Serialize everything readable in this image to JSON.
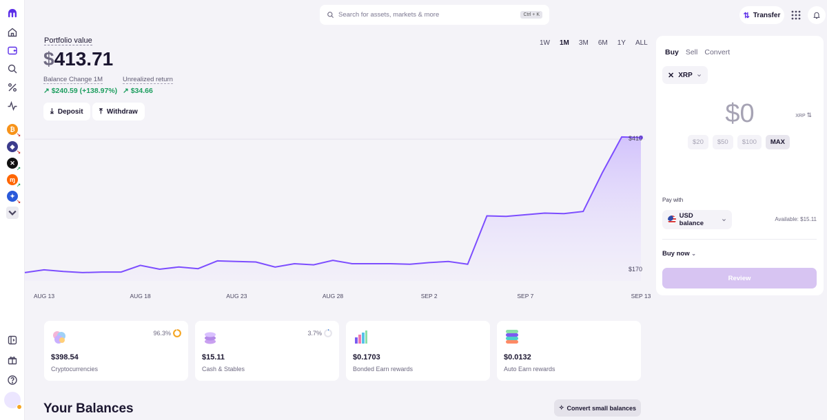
{
  "search": {
    "placeholder": "Search for assets, markets & more",
    "shortcut": "Ctrl + K"
  },
  "header": {
    "transfer_label": "Transfer"
  },
  "rail": {
    "icons": [
      "kraken-logo-icon",
      "home-icon",
      "wallet-icon",
      "search-icon",
      "percent-icon",
      "activity-icon",
      "sidebar-toggle-icon",
      "gift-icon",
      "help-icon"
    ],
    "coins": [
      {
        "symbol": "₿",
        "color": "#f7931a"
      },
      {
        "symbol": "◆",
        "color": "#3c3c8c"
      },
      {
        "symbol": "✕",
        "color": "#111111"
      },
      {
        "symbol": "ɱ",
        "color": "#ff6600"
      },
      {
        "symbol": "✦",
        "color": "#2a5ada"
      }
    ]
  },
  "portfolio": {
    "label": "Portfolio value",
    "currency": "$",
    "value": "413.71",
    "balance_change_label": "Balance Change 1M",
    "balance_change_value": "$240.59 (+138.97%)",
    "unrealized_label": "Unrealized return",
    "unrealized_value": "$34.66",
    "deposit_label": "Deposit",
    "withdraw_label": "Withdraw"
  },
  "ranges": {
    "items": [
      "1W",
      "1M",
      "3M",
      "6M",
      "1Y",
      "ALL"
    ],
    "active": "1M"
  },
  "chart_data": {
    "type": "area",
    "x": [
      "AUG 12",
      "AUG 13",
      "AUG 14",
      "AUG 15",
      "AUG 16",
      "AUG 17",
      "AUG 18",
      "AUG 19",
      "AUG 20",
      "AUG 21",
      "AUG 22",
      "AUG 23",
      "AUG 24",
      "AUG 25",
      "AUG 26",
      "AUG 27",
      "AUG 28",
      "AUG 29",
      "AUG 30",
      "AUG 31",
      "SEP 1",
      "SEP 2",
      "SEP 3",
      "SEP 4",
      "SEP 5",
      "SEP 6",
      "SEP 7",
      "SEP 8",
      "SEP 9",
      "SEP 10",
      "SEP 11",
      "SEP 12",
      "SEP 13"
    ],
    "values": [
      170,
      175,
      172,
      170,
      171,
      171,
      183,
      176,
      180,
      177,
      191,
      190,
      189,
      180,
      186,
      184,
      192,
      186,
      186,
      186,
      185,
      188,
      190,
      185,
      272,
      271,
      274,
      277,
      276,
      280,
      350,
      414,
      413
    ],
    "x_ticks": [
      "AUG 13",
      "AUG 18",
      "AUG 23",
      "AUG 28",
      "SEP 2",
      "SEP 7",
      "SEP 13"
    ],
    "y_high_label": "$410",
    "y_low_label": "$170",
    "ylim": [
      155,
      425
    ],
    "color": "#7c4dff"
  },
  "cards": [
    {
      "amount": "$398.54",
      "label": "Cryptocurrencies",
      "pct": "96.3%",
      "pct_value": 96.3,
      "ring_color": "#f5a623",
      "icon": "crypto-coins-icon"
    },
    {
      "amount": "$15.11",
      "label": "Cash & Stables",
      "pct": "3.7%",
      "pct_value": 3.7,
      "ring_color": "#4a90e2",
      "icon": "cash-stack-icon"
    },
    {
      "amount": "$0.1703",
      "label": "Bonded Earn rewards",
      "pct": "",
      "icon": "bar-chart-icon"
    },
    {
      "amount": "$0.0132",
      "label": "Auto Earn rewards",
      "pct": "",
      "icon": "layers-icon"
    }
  ],
  "balances": {
    "title": "Your Balances",
    "convert_label": "Convert small balances"
  },
  "trade": {
    "tabs": [
      "Buy",
      "Sell",
      "Convert"
    ],
    "active_tab": "Buy",
    "asset": "XRP",
    "amount": "$0",
    "unit": "XRP",
    "presets": [
      "$20",
      "$50",
      "$100",
      "MAX"
    ],
    "active_preset": "MAX",
    "pay_with_label": "Pay with",
    "pay_with_value": "USD balance",
    "available": "Available: $15.11",
    "order_type": "Buy now",
    "review_label": "Review"
  }
}
